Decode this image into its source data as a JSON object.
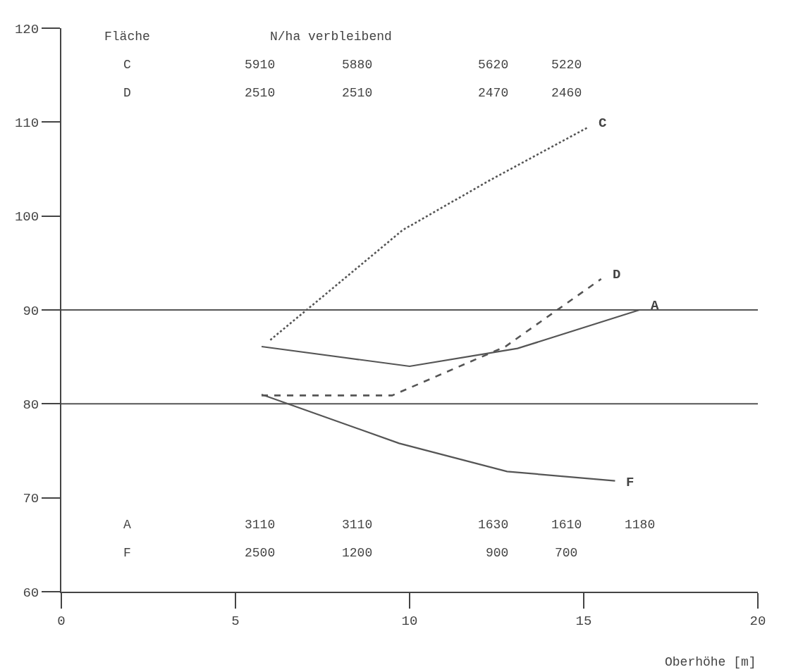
{
  "chart_data": {
    "type": "line",
    "xlabel": "Oberhöhe [m]",
    "xlim": [
      0,
      20
    ],
    "xticks": [
      0,
      5,
      10,
      15,
      20
    ],
    "ylim": [
      60,
      120
    ],
    "yticks": [
      60,
      70,
      80,
      90,
      100,
      110,
      120
    ],
    "grid": false,
    "legend": false,
    "marker": "none",
    "series": [
      {
        "name": "C",
        "color": "#555555",
        "line_style": "dotted",
        "x": [
          6.0,
          7.4,
          9.8,
          12.3,
          15.1
        ],
        "values": [
          86.8,
          91.1,
          98.5,
          103.8,
          109.4
        ]
      },
      {
        "name": "D",
        "color": "#555555",
        "line_style": "dashed",
        "x": [
          5.75,
          9.5,
          12.75,
          15.5
        ],
        "values": [
          80.9,
          80.9,
          86.1,
          93.3
        ]
      },
      {
        "name": "A",
        "color": "#555555",
        "line_style": "solid",
        "x": [
          5.75,
          10.0,
          13.1,
          16.6
        ],
        "values": [
          86.1,
          84.0,
          85.9,
          90.0
        ]
      },
      {
        "name": "F",
        "color": "#555555",
        "line_style": "solid",
        "x": [
          5.75,
          9.7,
          12.8,
          15.9
        ],
        "values": [
          81.0,
          75.8,
          72.8,
          71.8
        ]
      }
    ],
    "ref_lines": [
      {
        "axis": "y",
        "value": 90,
        "color": "#555555"
      },
      {
        "axis": "y",
        "value": 80,
        "color": "#555555"
      }
    ],
    "annotations": [
      "Fläche",
      "N/ha verbleibend",
      "C",
      "5910",
      "5880",
      "5620",
      "5220",
      "D",
      "2510",
      "2510",
      "2470",
      "2460",
      "A",
      "3110",
      "3110",
      "1630",
      "1610",
      "1180",
      "F",
      "2500",
      "1200",
      "900",
      "700"
    ]
  }
}
